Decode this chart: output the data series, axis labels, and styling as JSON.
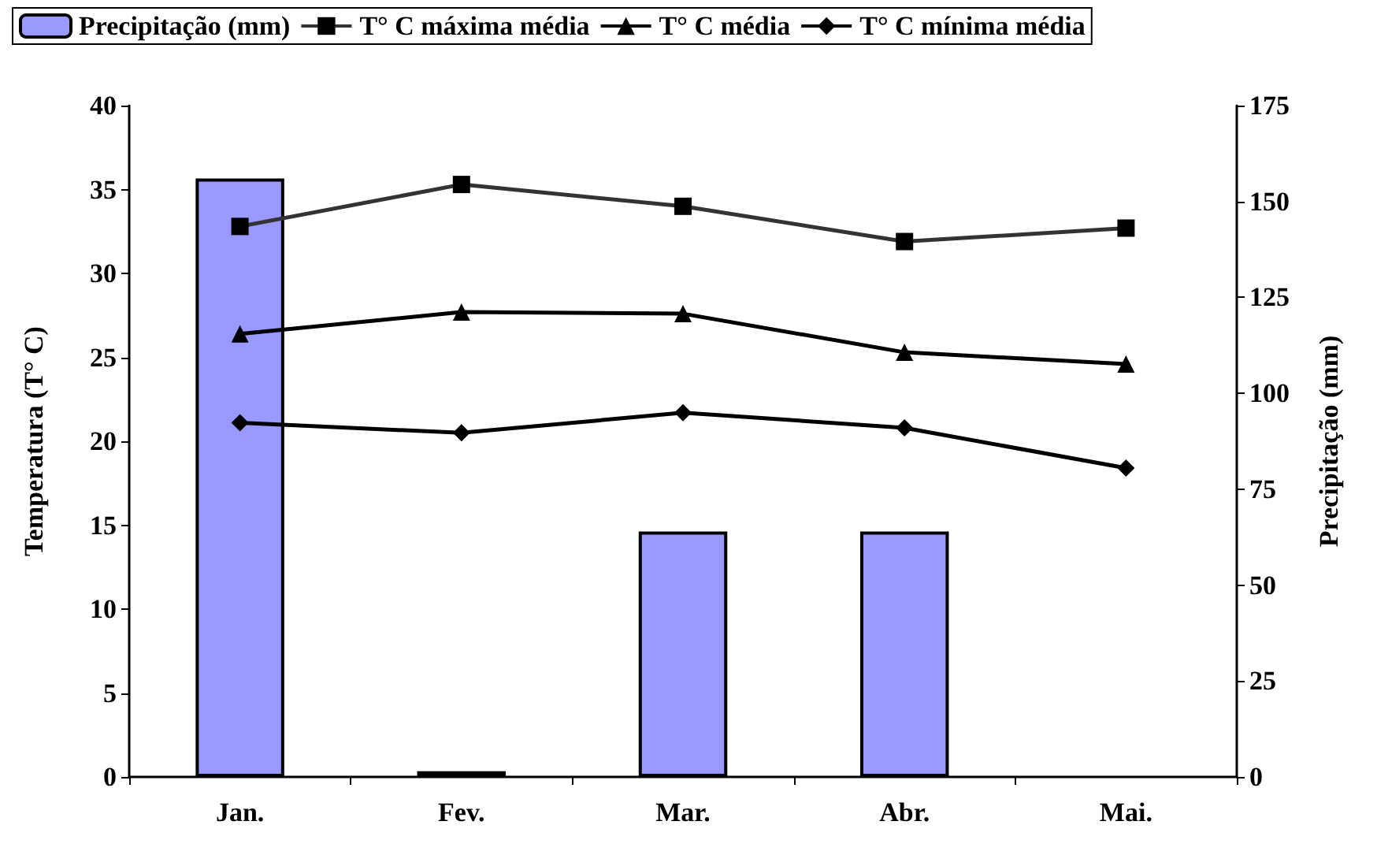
{
  "chart_data": {
    "type": "bar",
    "categories": [
      "Jan.",
      "Fev.",
      "Mar.",
      "Abr.",
      "Mai."
    ],
    "ylabel": "Temperatura (T° C)",
    "y2label": "Precipitação (mm)",
    "ylim": [
      0,
      40
    ],
    "yticks": [
      0,
      5,
      10,
      15,
      20,
      25,
      30,
      35,
      40
    ],
    "y2lim": [
      0,
      175
    ],
    "y2ticks": [
      0,
      25,
      50,
      75,
      100,
      125,
      150,
      175
    ],
    "grid": false,
    "legend": "top",
    "series": [
      {
        "name": "Precipitação (mm)",
        "axis": "y2",
        "color": "#9999ff",
        "values": [
          156,
          1.5,
          64,
          64,
          0
        ]
      },
      {
        "name": "T° C máxima média",
        "type": "line",
        "color": "#333333",
        "marker": "square",
        "values": [
          32.8,
          35.3,
          34.0,
          31.9,
          32.7
        ]
      },
      {
        "name": "T° C média",
        "type": "line",
        "color": "#000000",
        "marker": "triangle",
        "values": [
          26.4,
          27.7,
          27.6,
          25.3,
          24.6
        ]
      },
      {
        "name": "T° C mínima média",
        "type": "line",
        "color": "#000000",
        "marker": "diamond",
        "values": [
          21.1,
          20.5,
          21.7,
          20.8,
          18.4
        ]
      }
    ]
  }
}
